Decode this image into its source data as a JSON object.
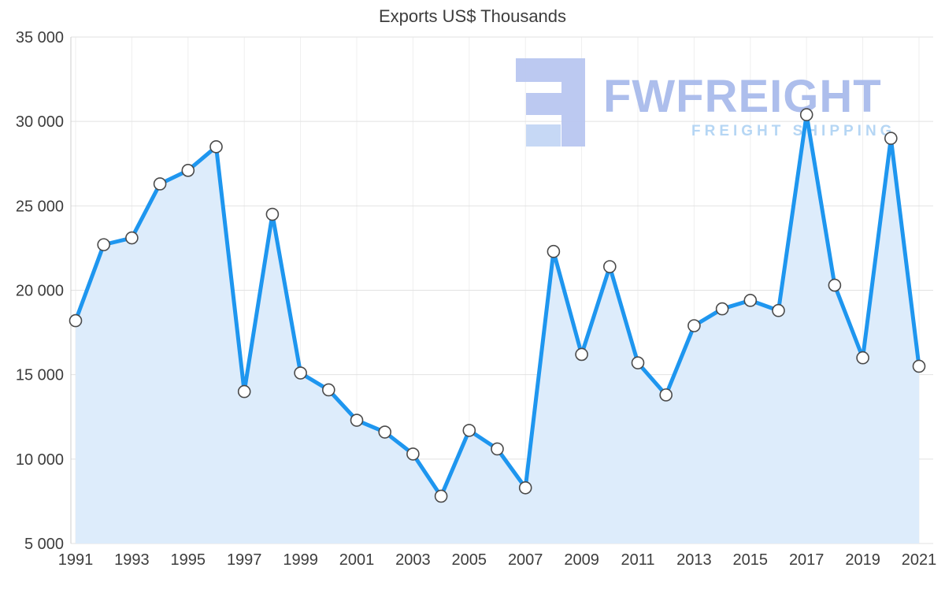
{
  "chart_data": {
    "type": "area",
    "title": "Exports US$ Thousands",
    "xlabel": "",
    "ylabel": "",
    "x": [
      1991,
      1992,
      1993,
      1994,
      1995,
      1996,
      1997,
      1998,
      1999,
      2000,
      2001,
      2002,
      2003,
      2004,
      2005,
      2006,
      2007,
      2008,
      2009,
      2010,
      2011,
      2012,
      2013,
      2014,
      2015,
      2016,
      2017,
      2018,
      2019,
      2020,
      2021
    ],
    "values": [
      18200,
      22700,
      23100,
      26300,
      27100,
      28500,
      14000,
      24500,
      15100,
      14100,
      12300,
      11600,
      10300,
      7800,
      11700,
      10600,
      8300,
      22300,
      16200,
      21400,
      15700,
      13800,
      17900,
      18900,
      19400,
      18800,
      30400,
      20300,
      16000,
      29000,
      15500
    ],
    "ylim": [
      5000,
      35000
    ],
    "ytick_step": 5000,
    "ytick_labels": [
      "5 000",
      "10 000",
      "15 000",
      "20 000",
      "25 000",
      "30 000",
      "35 000"
    ],
    "xtick_years": [
      1991,
      1993,
      1995,
      1997,
      1999,
      2001,
      2003,
      2005,
      2007,
      2009,
      2011,
      2013,
      2015,
      2017,
      2019,
      2021
    ],
    "grid": true,
    "legend": "none",
    "line_color": "#1e96ef",
    "fill_color": "#ddecfb",
    "marker_fill": "#ffffff",
    "marker_stroke": "#4a4a4a"
  },
  "watermark": {
    "brand": "FWFREIGHT",
    "tagline": "FREIGHT SHIPPING",
    "logo_color": "#b9c7f1"
  }
}
